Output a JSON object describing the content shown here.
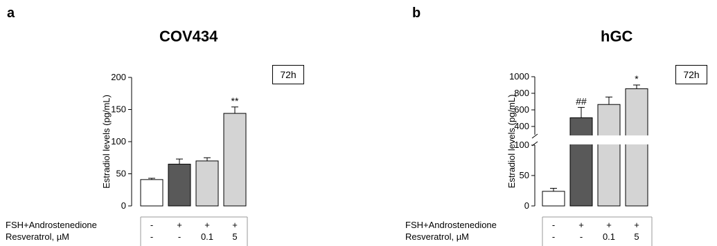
{
  "chart_data": [
    {
      "type": "bar",
      "panel_label": "a",
      "title": "COV434",
      "ylabel": "Estradiol levels (pg/mL)",
      "ylim": [
        0,
        200
      ],
      "y_ticks": [
        "0",
        "50",
        "100",
        "150",
        "200"
      ],
      "timepoint": "72h",
      "series": [
        {
          "values": [
            41,
            65,
            70,
            144
          ],
          "errors": [
            2,
            8,
            5,
            10
          ],
          "colors": [
            "#ffffff",
            "#595959",
            "#d4d4d4",
            "#d4d4d4"
          ]
        }
      ],
      "significance": [
        "",
        "",
        "",
        "**"
      ],
      "conditions": [
        {
          "label": "FSH+Androstenedione",
          "values": [
            "-",
            "+",
            "+",
            "+"
          ]
        },
        {
          "label": "Resveratrol, µM",
          "values": [
            "-",
            "-",
            "0.1",
            "5"
          ]
        }
      ]
    },
    {
      "type": "bar",
      "panel_label": "b",
      "title": "hGC",
      "ylabel": "Estradiol levels (pg/mL)",
      "y_axis_break": true,
      "ylim_lower": [
        0,
        100
      ],
      "ylim_upper": [
        300,
        1000
      ],
      "y_ticks_lower": [
        "0",
        "50",
        "100"
      ],
      "y_ticks_upper": [
        "400",
        "600",
        "800",
        "1000"
      ],
      "timepoint": "72h",
      "series": [
        {
          "values": [
            24,
            505,
            665,
            855
          ],
          "errors": [
            5,
            125,
            90,
            45
          ],
          "colors": [
            "#ffffff",
            "#595959",
            "#d4d4d4",
            "#d4d4d4"
          ]
        }
      ],
      "significance": [
        "",
        "##",
        "",
        "*"
      ],
      "conditions": [
        {
          "label": "FSH+Androstenedione",
          "values": [
            "-",
            "+",
            "+",
            "+"
          ]
        },
        {
          "label": "Resveratrol, µM",
          "values": [
            "-",
            "-",
            "0.1",
            "5"
          ]
        }
      ]
    }
  ]
}
